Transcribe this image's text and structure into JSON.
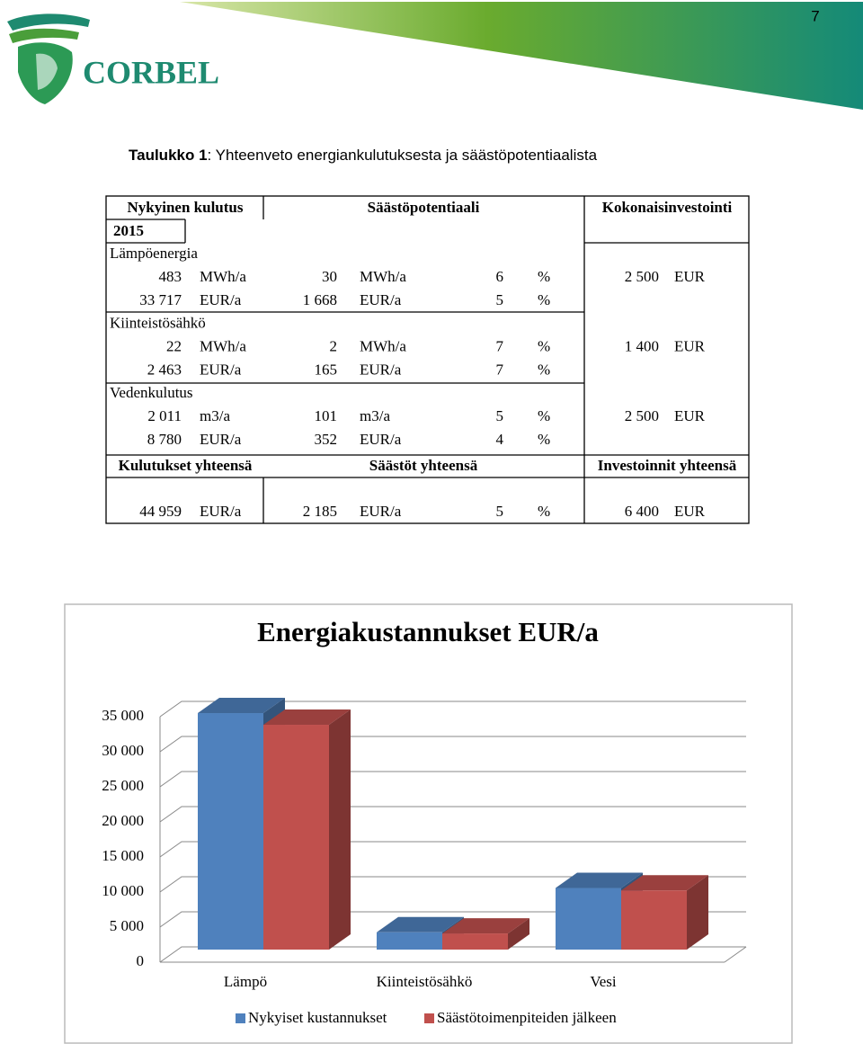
{
  "header": {
    "page_number": "7",
    "logo_text": "CORBEL"
  },
  "caption": {
    "label": "Taulukko 1",
    "text": ": Yhteenveto energiankulutuksesta ja säästöpotentiaalista"
  },
  "table": {
    "headers": [
      "Nykyinen kulutus",
      "Säästöpotentiaali",
      "Kokonaisinvestointi"
    ],
    "year": "2015",
    "groups": [
      {
        "name": "Lämpöenergia",
        "rows": [
          [
            "483",
            "MWh/a",
            "30",
            "MWh/a",
            "6",
            "%",
            "2 500",
            "EUR"
          ],
          [
            "33 717",
            "EUR/a",
            "1 668",
            "EUR/a",
            "5",
            "%"
          ]
        ]
      },
      {
        "name": "Kiinteistösähkö",
        "rows": [
          [
            "22",
            "MWh/a",
            "2",
            "MWh/a",
            "7",
            "%",
            "1 400",
            "EUR"
          ],
          [
            "2 463",
            "EUR/a",
            "165",
            "EUR/a",
            "7",
            "%"
          ]
        ]
      },
      {
        "name": "Vedenkulutus",
        "rows": [
          [
            "2 011",
            "m3/a",
            "101",
            "m3/a",
            "5",
            "%",
            "2 500",
            "EUR"
          ],
          [
            "8 780",
            "EUR/a",
            "352",
            "EUR/a",
            "4",
            "%"
          ]
        ]
      }
    ],
    "total_headers": [
      "Kulutukset yhteensä",
      "Säästöt yhteensä",
      "Investoinnit yhteensä"
    ],
    "totals": [
      "44 959",
      "EUR/a",
      "2 185",
      "EUR/a",
      "5",
      "%",
      "6 400",
      "EUR"
    ]
  },
  "chart_data": {
    "type": "bar3d",
    "title": "Energiakustannukset EUR/a",
    "categories": [
      "Lämpö",
      "Kiinteistösähkö",
      "Vesi"
    ],
    "series": [
      {
        "name": "Nykyiset kustannukset",
        "color": "#4f81bd",
        "values": [
          33717,
          2463,
          8780
        ]
      },
      {
        "name": "Säästötoimenpiteiden jälkeen",
        "color": "#c0504d",
        "values": [
          32049,
          2298,
          8428
        ]
      }
    ],
    "ylim": [
      0,
      35000
    ],
    "yticks": [
      0,
      {
        "value": 5000,
        "label": "5 000"
      },
      {
        "value": 10000,
        "label": "10 000"
      },
      {
        "value": 15000,
        "label": "15 000"
      },
      {
        "value": 20000,
        "label": "20 000"
      },
      {
        "value": 25000,
        "label": "25 000"
      },
      {
        "value": 30000,
        "label": "30 000"
      },
      {
        "value": 35000,
        "label": "35 000"
      }
    ],
    "grid": true,
    "legend": "bottom"
  }
}
